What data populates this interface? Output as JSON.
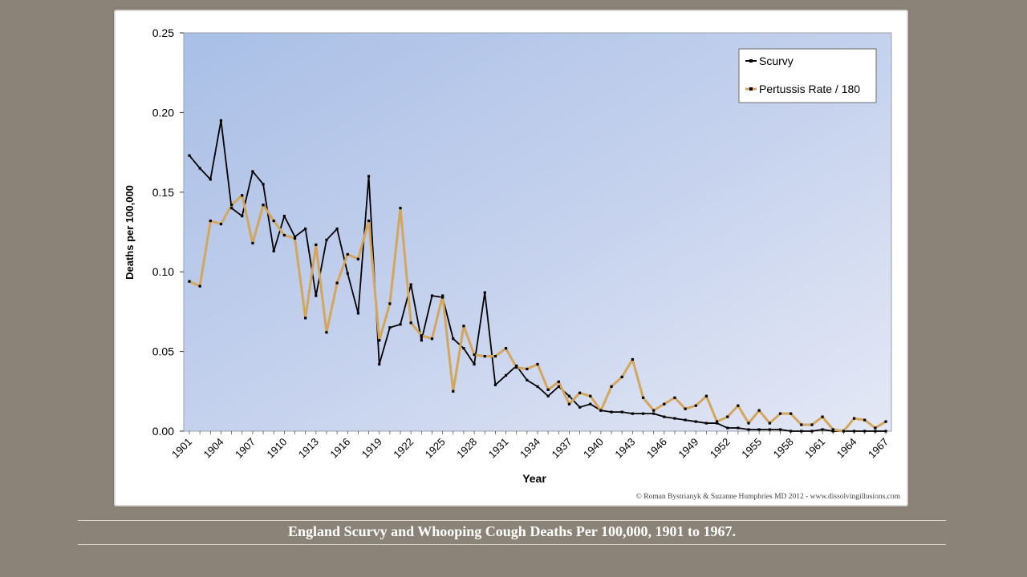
{
  "chart_data": {
    "type": "line",
    "title": "",
    "xlabel": "Year",
    "ylabel": "Deaths per 100,000",
    "ylim": [
      0,
      0.25
    ],
    "y_ticks": [
      "0.00",
      "0.05",
      "0.10",
      "0.15",
      "0.20",
      "0.25"
    ],
    "y_tick_values": [
      0,
      0.05,
      0.1,
      0.15,
      0.2,
      0.25
    ],
    "x_ticks": [
      "1901",
      "1904",
      "1907",
      "1910",
      "1913",
      "1916",
      "1919",
      "1922",
      "1925",
      "1928",
      "1931",
      "1934",
      "1937",
      "1940",
      "1943",
      "1946",
      "1949",
      "1952",
      "1955",
      "1958",
      "1961",
      "1964",
      "1967"
    ],
    "x": [
      1901,
      1902,
      1903,
      1904,
      1905,
      1906,
      1907,
      1908,
      1909,
      1910,
      1911,
      1912,
      1913,
      1914,
      1915,
      1916,
      1917,
      1918,
      1919,
      1920,
      1921,
      1922,
      1923,
      1924,
      1925,
      1926,
      1927,
      1928,
      1929,
      1930,
      1931,
      1932,
      1933,
      1934,
      1935,
      1936,
      1937,
      1938,
      1939,
      1940,
      1941,
      1942,
      1943,
      1944,
      1945,
      1946,
      1947,
      1948,
      1949,
      1950,
      1951,
      1952,
      1953,
      1954,
      1955,
      1956,
      1957,
      1958,
      1959,
      1960,
      1961,
      1962,
      1963,
      1964,
      1965,
      1966,
      1967
    ],
    "series": [
      {
        "name": "Scurvy",
        "color": "#000000",
        "values": [
          0.173,
          0.165,
          0.158,
          0.195,
          0.14,
          0.135,
          0.163,
          0.155,
          0.113,
          0.135,
          0.122,
          0.127,
          0.085,
          0.12,
          0.127,
          0.099,
          0.074,
          0.16,
          0.042,
          0.065,
          0.067,
          0.092,
          0.057,
          0.085,
          0.084,
          0.058,
          0.052,
          0.042,
          0.087,
          0.029,
          0.035,
          0.041,
          0.032,
          0.028,
          0.022,
          0.028,
          0.022,
          0.015,
          0.017,
          0.013,
          0.012,
          0.012,
          0.011,
          0.011,
          0.011,
          0.009,
          0.008,
          0.007,
          0.006,
          0.005,
          0.005,
          0.002,
          0.002,
          0.001,
          0.001,
          0.001,
          0.001,
          0.0,
          0.0,
          0.0,
          0.001,
          0.0,
          0.0,
          0.0,
          0.0,
          0.0,
          0.0
        ]
      },
      {
        "name": "Pertussis Rate / 180",
        "color": "#d4a65c",
        "values": [
          0.094,
          0.091,
          0.132,
          0.13,
          0.142,
          0.148,
          0.118,
          0.142,
          0.132,
          0.123,
          0.121,
          0.071,
          0.117,
          0.062,
          0.093,
          0.111,
          0.108,
          0.132,
          0.057,
          0.08,
          0.14,
          0.068,
          0.06,
          0.058,
          0.085,
          0.025,
          0.066,
          0.048,
          0.047,
          0.047,
          0.052,
          0.04,
          0.039,
          0.042,
          0.026,
          0.031,
          0.017,
          0.024,
          0.022,
          0.013,
          0.028,
          0.034,
          0.045,
          0.021,
          0.013,
          0.017,
          0.021,
          0.014,
          0.016,
          0.022,
          0.006,
          0.009,
          0.016,
          0.005,
          0.013,
          0.005,
          0.011,
          0.011,
          0.004,
          0.004,
          0.009,
          0.001,
          0.0,
          0.008,
          0.007,
          0.002,
          0.006
        ]
      }
    ],
    "legend_position": "top-right",
    "grid": false,
    "credit": "© Roman Bystrianyk & Suzanne Humphries MD 2012 - www.dissolvingillusions.com"
  },
  "caption": "England Scurvy and Whooping Cough Deaths Per 100,000, 1901 to 1967."
}
